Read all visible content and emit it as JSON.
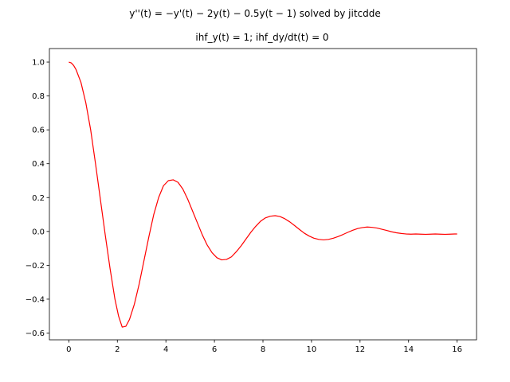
{
  "chart_data": {
    "type": "line",
    "title_line1": "y''(t) = −y'(t) − 2y(t) − 0.5y(t − 1) solved by jitcdde",
    "title_line2": "ihf_y(t) = 1; ihf_dy/dt(t) = 0",
    "xlabel": "",
    "ylabel": "",
    "xlim": [
      -0.8,
      16.8
    ],
    "ylim": [
      -0.64,
      1.08
    ],
    "xticks": [
      0,
      2,
      4,
      6,
      8,
      10,
      12,
      14,
      16
    ],
    "yticks": [
      -0.6,
      -0.4,
      -0.2,
      0.0,
      0.2,
      0.4,
      0.6,
      0.8,
      1.0
    ],
    "ytick_labels": [
      "−0.6",
      "−0.4",
      "−0.2",
      "0.0",
      "0.2",
      "0.4",
      "0.6",
      "0.8",
      "1.0"
    ],
    "grid": false,
    "series": [
      {
        "color": "#ff0000",
        "x": [
          0.0,
          0.1,
          0.2,
          0.3,
          0.5,
          0.7,
          0.9,
          1.1,
          1.3,
          1.5,
          1.7,
          1.9,
          2.05,
          2.2,
          2.35,
          2.5,
          2.7,
          2.9,
          3.1,
          3.3,
          3.5,
          3.7,
          3.9,
          4.1,
          4.3,
          4.5,
          4.7,
          4.9,
          5.1,
          5.3,
          5.5,
          5.7,
          5.9,
          6.1,
          6.3,
          6.5,
          6.7,
          6.9,
          7.1,
          7.3,
          7.5,
          7.7,
          7.9,
          8.1,
          8.3,
          8.5,
          8.7,
          8.9,
          9.1,
          9.3,
          9.5,
          9.7,
          9.9,
          10.1,
          10.3,
          10.5,
          10.7,
          10.9,
          11.1,
          11.3,
          11.5,
          11.7,
          11.9,
          12.1,
          12.3,
          12.5,
          12.7,
          12.9,
          13.1,
          13.3,
          13.5,
          13.7,
          13.9,
          14.1,
          14.3,
          14.5,
          14.7,
          14.9,
          15.1,
          15.3,
          15.5,
          15.7,
          15.9,
          16.0
        ],
        "y": [
          1.0,
          0.995,
          0.98,
          0.955,
          0.88,
          0.76,
          0.6,
          0.4,
          0.19,
          -0.02,
          -0.22,
          -0.4,
          -0.5,
          -0.565,
          -0.56,
          -0.52,
          -0.43,
          -0.31,
          -0.17,
          -0.03,
          0.1,
          0.2,
          0.27,
          0.3,
          0.305,
          0.29,
          0.25,
          0.19,
          0.12,
          0.05,
          -0.02,
          -0.08,
          -0.125,
          -0.155,
          -0.168,
          -0.165,
          -0.15,
          -0.12,
          -0.085,
          -0.045,
          -0.005,
          0.03,
          0.06,
          0.08,
          0.09,
          0.093,
          0.088,
          0.075,
          0.057,
          0.035,
          0.012,
          -0.01,
          -0.027,
          -0.04,
          -0.047,
          -0.05,
          -0.047,
          -0.04,
          -0.03,
          -0.018,
          -0.005,
          0.007,
          0.017,
          0.023,
          0.026,
          0.024,
          0.02,
          0.013,
          0.006,
          -0.002,
          -0.008,
          -0.012,
          -0.015,
          -0.016,
          -0.015,
          -0.016,
          -0.017,
          -0.016,
          -0.015,
          -0.016,
          -0.017,
          -0.016,
          -0.015,
          -0.015
        ]
      }
    ]
  }
}
